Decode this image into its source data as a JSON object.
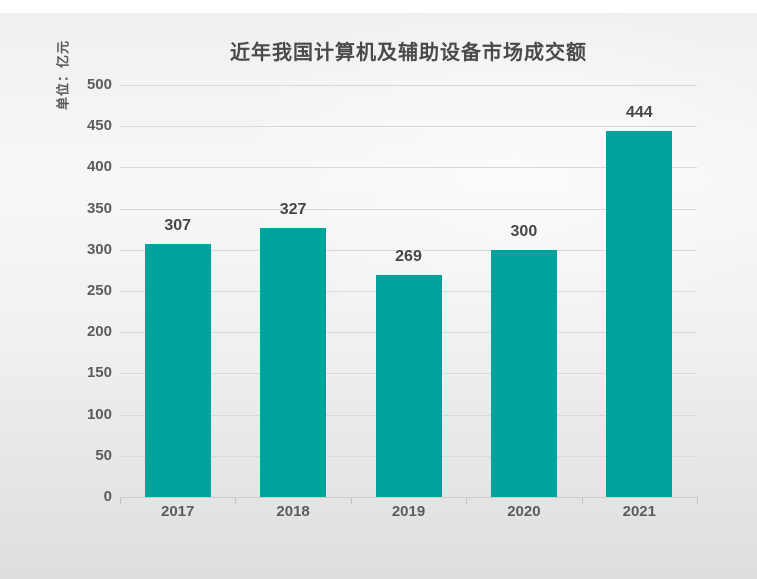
{
  "page": {
    "top_strip_color": "#ffffff"
  },
  "colors": {
    "bar": "#00a39b",
    "title_text": "#4a4a4a",
    "tick_text": "#5c5c5c",
    "value_text": "#474747",
    "gridline": "#d9d9d9",
    "axis_line": "#cccccc",
    "background_top": "#f0f0f0",
    "background_bottom": "#dedede"
  },
  "chart_data": {
    "type": "bar",
    "title": "近年我国计算机及辅助设备市场成交额",
    "categories": [
      "2017",
      "2018",
      "2019",
      "2020",
      "2021"
    ],
    "values": [
      307,
      327,
      269,
      300,
      444
    ],
    "value_labels": [
      "307",
      "327",
      "269",
      "300",
      "444"
    ],
    "xlabel": "",
    "ylabel": "单位：亿元",
    "ylim": [
      0,
      500
    ],
    "ytick_step": 50,
    "yticks": [
      0,
      50,
      100,
      150,
      200,
      250,
      300,
      350,
      400,
      450,
      500
    ],
    "grid": true,
    "legend": "none",
    "bar_color": "#00a39b"
  }
}
